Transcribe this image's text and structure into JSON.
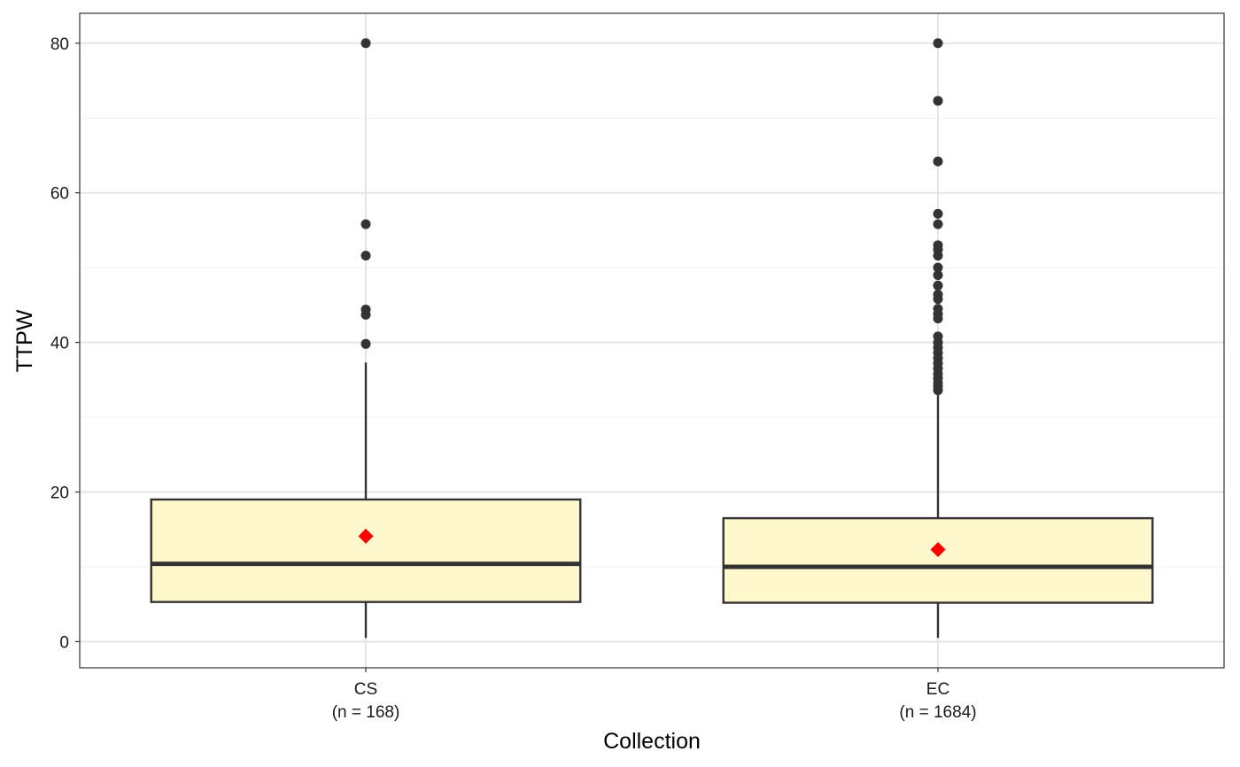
{
  "chart_data": {
    "type": "boxplot",
    "xlabel": "Collection",
    "ylabel": "TTPW",
    "ylim": [
      -3.5,
      84
    ],
    "y_ticks": [
      0,
      20,
      40,
      60,
      80
    ],
    "grid": true,
    "colors": {
      "box_fill": "#FFF8CC",
      "box_stroke": "#333333",
      "mean_marker": "#FF0000",
      "outlier": "#333333",
      "grid_major": "#E5E5E5",
      "grid_minor": "#F2F2F2"
    },
    "groups": [
      {
        "category": "CS",
        "n_label": "(n = 168)",
        "whisker_low": 0.5,
        "q1": 5.3,
        "median": 10.4,
        "q3": 19.0,
        "whisker_high": 37.3,
        "mean": 14.1,
        "outliers": [
          39.8,
          43.7,
          44.4,
          51.6,
          55.8,
          80.0
        ]
      },
      {
        "category": "EC",
        "n_label": "(n = 1684)",
        "whisker_low": 0.5,
        "q1": 5.2,
        "median": 10.0,
        "q3": 16.5,
        "whisker_high": 33.3,
        "mean": 12.3,
        "outliers": [
          33.6,
          34.1,
          34.6,
          35.2,
          35.8,
          36.5,
          37.2,
          37.9,
          38.6,
          39.3,
          40.0,
          40.8,
          43.2,
          43.8,
          44.5,
          45.8,
          46.4,
          47.6,
          49.0,
          50.0,
          51.6,
          52.4,
          53.0,
          55.8,
          57.2,
          64.2,
          72.3,
          80.0
        ]
      }
    ]
  }
}
